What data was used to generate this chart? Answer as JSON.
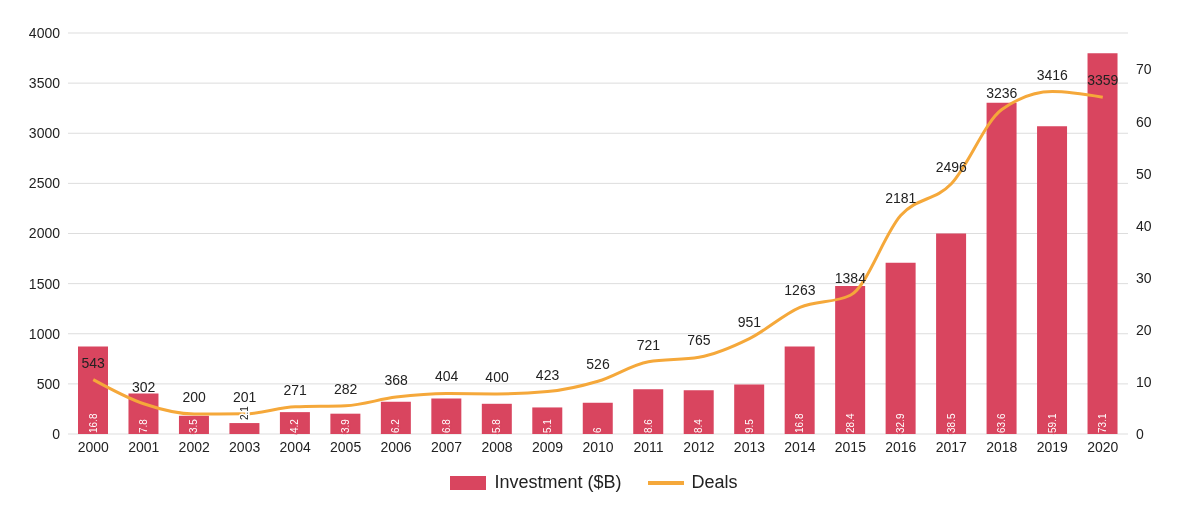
{
  "chart_data": {
    "type": "bar",
    "categories": [
      "2000",
      "2001",
      "2002",
      "2003",
      "2004",
      "2005",
      "2006",
      "2007",
      "2008",
      "2009",
      "2010",
      "2011",
      "2012",
      "2013",
      "2014",
      "2015",
      "2016",
      "2017",
      "2018",
      "2019",
      "2020"
    ],
    "series": [
      {
        "name": "Investment ($B)",
        "axis": "y2",
        "color": "#d9455f",
        "values": [
          16.8,
          7.8,
          3.5,
          2.1,
          4.2,
          3.9,
          6.2,
          6.8,
          5.8,
          5.1,
          6,
          8.6,
          8.4,
          9.5,
          16.8,
          28.4,
          32.9,
          38.5,
          63.6,
          59.1,
          73.1
        ]
      },
      {
        "name": "Deals",
        "type": "line",
        "axis": "y",
        "color": "#f5a83a",
        "values": [
          543,
          302,
          200,
          201,
          271,
          282,
          368,
          404,
          400,
          423,
          526,
          721,
          765,
          951,
          1263,
          1384,
          2181,
          2496,
          3236,
          3416,
          3359
        ]
      }
    ],
    "ylim": [
      0,
      4000
    ],
    "yticks": [
      0,
      500,
      1000,
      1500,
      2000,
      2500,
      3000,
      3500,
      4000
    ],
    "y2lim": [
      0,
      77
    ],
    "y2ticks": [
      0,
      10,
      20,
      30,
      40,
      50,
      60,
      70
    ],
    "grid": "y",
    "legend": "bottom",
    "data_labels": true,
    "marker": "none",
    "line_style": "solid"
  }
}
